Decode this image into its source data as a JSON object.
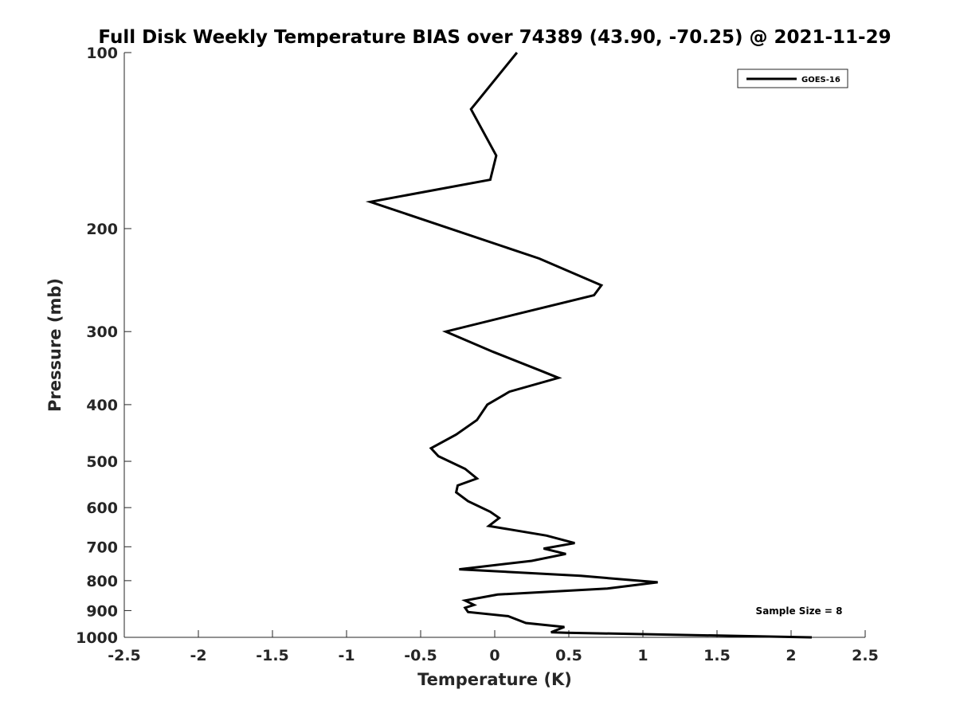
{
  "chart_data": {
    "type": "line",
    "title": "Full Disk Weekly Temperature BIAS over 74389 (43.90, -70.25) @ 2021-11-29",
    "xlabel": "Temperature (K)",
    "ylabel": "Pressure (mb)",
    "xlim": [
      -2.5,
      2.5
    ],
    "ylim": [
      1000,
      100
    ],
    "yscale": "log",
    "xticks": [
      -2.5,
      -2,
      -1.5,
      -1,
      -0.5,
      0,
      0.5,
      1,
      1.5,
      2,
      2.5
    ],
    "xtick_labels": [
      "-2.5",
      "-2",
      "-1.5",
      "-1",
      "-0.5",
      "0",
      "0.5",
      "1",
      "1.5",
      "2",
      "2.5"
    ],
    "yticks": [
      100,
      200,
      300,
      400,
      500,
      600,
      700,
      800,
      900,
      1000
    ],
    "ytick_labels": [
      "100",
      "200",
      "300",
      "400",
      "500",
      "600",
      "700",
      "800",
      "900",
      "1000"
    ],
    "grid": false,
    "legend_position": "top-right",
    "series": [
      {
        "name": "GOES-16",
        "color": "#000000",
        "points": [
          {
            "x": 0.15,
            "y": 100
          },
          {
            "x": -0.16,
            "y": 125
          },
          {
            "x": 0.01,
            "y": 150
          },
          {
            "x": -0.03,
            "y": 165
          },
          {
            "x": -0.84,
            "y": 180
          },
          {
            "x": 0.3,
            "y": 225
          },
          {
            "x": 0.72,
            "y": 250
          },
          {
            "x": 0.67,
            "y": 260
          },
          {
            "x": 0.15,
            "y": 280
          },
          {
            "x": -0.33,
            "y": 300
          },
          {
            "x": -0.01,
            "y": 325
          },
          {
            "x": 0.31,
            "y": 350
          },
          {
            "x": 0.43,
            "y": 360
          },
          {
            "x": 0.1,
            "y": 380
          },
          {
            "x": -0.05,
            "y": 400
          },
          {
            "x": -0.12,
            "y": 425
          },
          {
            "x": -0.26,
            "y": 450
          },
          {
            "x": -0.43,
            "y": 475
          },
          {
            "x": -0.38,
            "y": 490
          },
          {
            "x": -0.2,
            "y": 515
          },
          {
            "x": -0.12,
            "y": 535
          },
          {
            "x": -0.25,
            "y": 550
          },
          {
            "x": -0.26,
            "y": 565
          },
          {
            "x": -0.18,
            "y": 585
          },
          {
            "x": -0.03,
            "y": 610
          },
          {
            "x": 0.03,
            "y": 625
          },
          {
            "x": -0.04,
            "y": 645
          },
          {
            "x": 0.35,
            "y": 670
          },
          {
            "x": 0.54,
            "y": 690
          },
          {
            "x": 0.33,
            "y": 705
          },
          {
            "x": 0.48,
            "y": 720
          },
          {
            "x": 0.25,
            "y": 740
          },
          {
            "x": -0.24,
            "y": 765
          },
          {
            "x": 0.58,
            "y": 785
          },
          {
            "x": 1.1,
            "y": 805
          },
          {
            "x": 0.76,
            "y": 825
          },
          {
            "x": 0.02,
            "y": 845
          },
          {
            "x": -0.2,
            "y": 865
          },
          {
            "x": -0.14,
            "y": 880
          },
          {
            "x": -0.2,
            "y": 890
          },
          {
            "x": -0.18,
            "y": 905
          },
          {
            "x": 0.09,
            "y": 920
          },
          {
            "x": 0.21,
            "y": 945
          },
          {
            "x": 0.47,
            "y": 960
          },
          {
            "x": 0.38,
            "y": 980
          },
          {
            "x": 0.48,
            "y": 982
          },
          {
            "x": 2.14,
            "y": 1000
          }
        ]
      }
    ],
    "annotations": [
      "Sample Size = 8"
    ]
  }
}
